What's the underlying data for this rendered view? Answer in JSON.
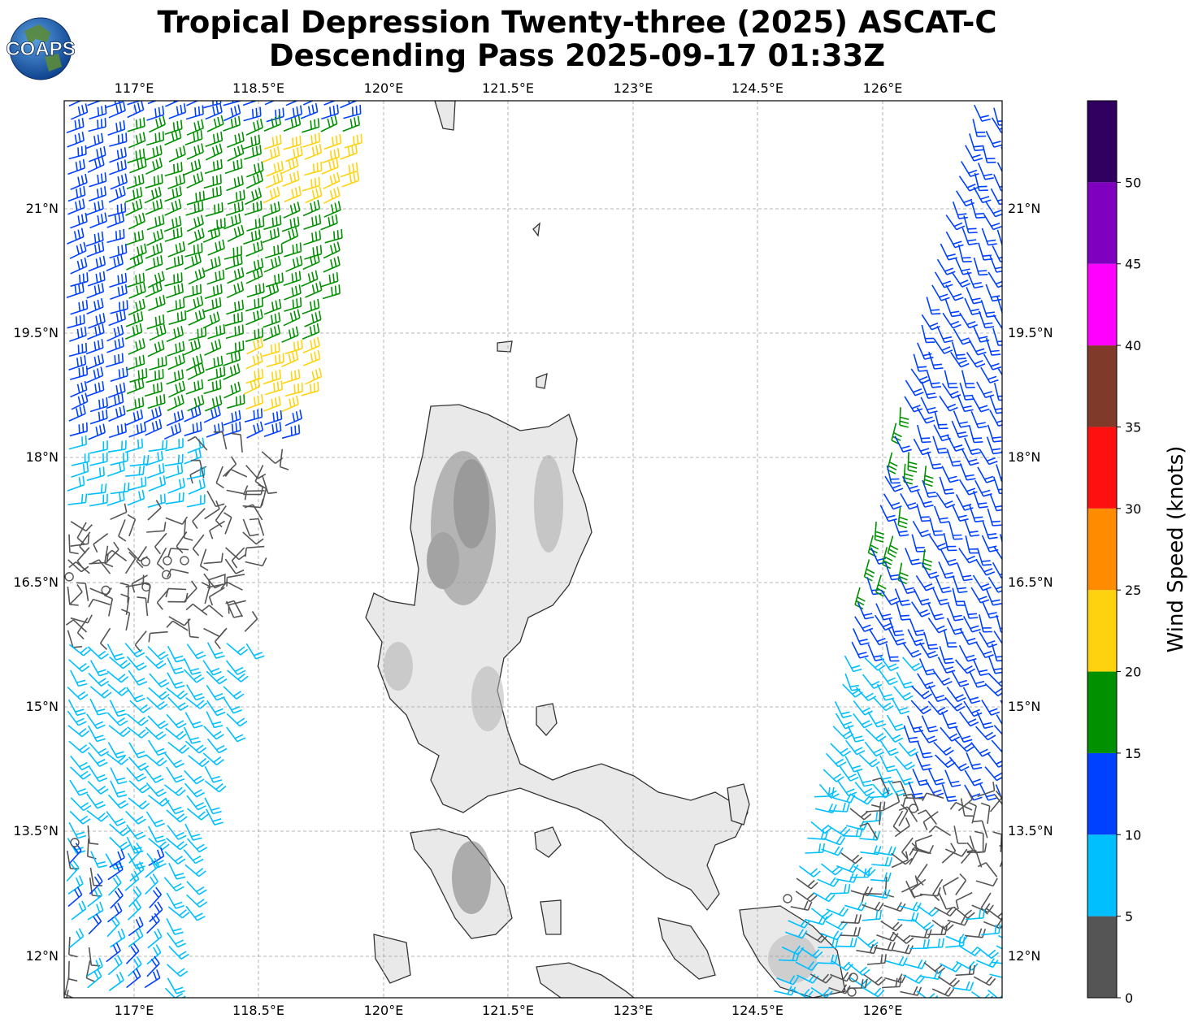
{
  "title_line1": "Tropical Depression Twenty-three (2025) ASCAT-C",
  "title_line2": "Descending Pass 2025-09-17 01:33Z",
  "logo_text": "COAPS",
  "map": {
    "lon_range": [
      116.5,
      127.8
    ],
    "lat_range": [
      11.5,
      22.3
    ],
    "lon_ticks": [
      "117°E",
      "118.5°E",
      "120°E",
      "121.5°E",
      "123°E",
      "124.5°E",
      "126°E"
    ],
    "lat_ticks": [
      "21°N",
      "19.5°N",
      "18°N",
      "16.5°N",
      "15°N",
      "13.5°N",
      "12°N"
    ],
    "gridlines": true
  },
  "colorbar": {
    "label": "Wind Speed (knots)",
    "tick_labels": [
      "0",
      "5",
      "10",
      "15",
      "20",
      "25",
      "30",
      "35",
      "40",
      "45",
      "50"
    ],
    "bins": [
      {
        "min": 0,
        "max": 5,
        "color": "#555555"
      },
      {
        "min": 5,
        "max": 10,
        "color": "#00bfff"
      },
      {
        "min": 10,
        "max": 15,
        "color": "#0040ff"
      },
      {
        "min": 15,
        "max": 20,
        "color": "#009000"
      },
      {
        "min": 20,
        "max": 25,
        "color": "#ffd210"
      },
      {
        "min": 25,
        "max": 30,
        "color": "#ff8c00"
      },
      {
        "min": 30,
        "max": 35,
        "color": "#ff1010"
      },
      {
        "min": 35,
        "max": 40,
        "color": "#803a2a"
      },
      {
        "min": 40,
        "max": 45,
        "color": "#ff00ff"
      },
      {
        "min": 45,
        "max": 50,
        "color": "#8000c0"
      },
      {
        "min": 50,
        "max": 55,
        "color": "#300060"
      }
    ]
  }
}
